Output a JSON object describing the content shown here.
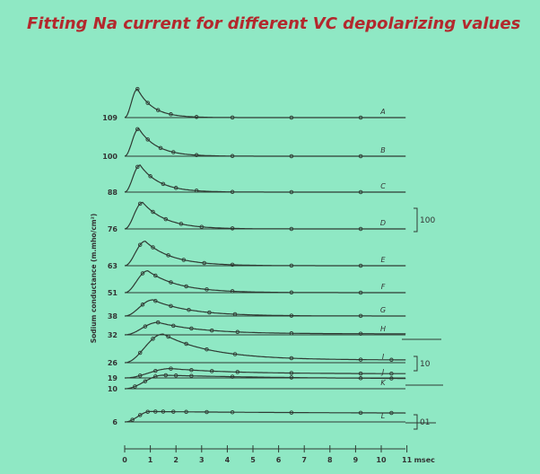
{
  "slide": {
    "title": "Fitting Na current for different VC depolarizing values"
  },
  "chart_data": {
    "type": "line",
    "ylabel": "Sodium conductance (m.mho/cm²)",
    "xlabel": "msec",
    "x_ticks": [
      "0",
      "1",
      "2",
      "3",
      "4",
      "5",
      "6",
      "7",
      "8",
      "9",
      "10",
      "11"
    ],
    "xlim": [
      0,
      11
    ],
    "scale_bars": [
      "100",
      "10",
      "01"
    ],
    "series": [
      {
        "name": "A",
        "depolarization": "109",
        "peak_time": 0.5,
        "peak": 0.55,
        "tau_decay": 0.6,
        "steady": 0.0,
        "points_x": [
          0.5,
          0.9,
          1.3,
          1.8,
          2.8,
          4.2,
          6.5,
          9.2
        ]
      },
      {
        "name": "B",
        "depolarization": "100",
        "peak_time": 0.55,
        "peak": 0.53,
        "tau_decay": 0.7,
        "steady": 0.0,
        "points_x": [
          0.5,
          0.9,
          1.4,
          1.9,
          2.8,
          4.2,
          6.5,
          9.2
        ]
      },
      {
        "name": "C",
        "depolarization": "88",
        "peak_time": 0.6,
        "peak": 0.52,
        "tau_decay": 0.75,
        "steady": 0.0,
        "points_x": [
          0.5,
          1.0,
          1.5,
          2.0,
          2.8,
          4.2,
          6.5,
          9.2
        ]
      },
      {
        "name": "D",
        "depolarization": "76",
        "peak_time": 0.7,
        "peak": 0.51,
        "tau_decay": 0.9,
        "steady": 0.0,
        "points_x": [
          0.6,
          1.1,
          1.6,
          2.2,
          3.0,
          4.2,
          6.5,
          9.2
        ]
      },
      {
        "name": "E",
        "depolarization": "63",
        "peak_time": 0.8,
        "peak": 0.47,
        "tau_decay": 1.05,
        "steady": 0.0,
        "points_x": [
          0.6,
          1.1,
          1.7,
          2.3,
          3.1,
          4.2,
          6.5,
          9.2
        ]
      },
      {
        "name": "F",
        "depolarization": "51",
        "peak_time": 0.9,
        "peak": 0.42,
        "tau_decay": 1.2,
        "steady": 0.0,
        "points_x": [
          0.7,
          1.2,
          1.8,
          2.4,
          3.2,
          4.2,
          6.5,
          9.2
        ]
      },
      {
        "name": "G",
        "depolarization": "38",
        "peak_time": 1.1,
        "peak": 0.31,
        "tau_decay": 1.45,
        "steady": 0.0,
        "points_x": [
          0.7,
          1.2,
          1.8,
          2.5,
          3.3,
          4.3,
          6.5,
          9.2
        ]
      },
      {
        "name": "H",
        "depolarization": "32",
        "peak_time": 1.3,
        "peak": 0.24,
        "tau_decay": 1.7,
        "steady": 0.02,
        "points_x": [
          0.8,
          1.3,
          1.9,
          2.6,
          3.4,
          4.4,
          6.5,
          9.2
        ]
      },
      {
        "name": "I",
        "depolarization": "26",
        "peak_time": 1.5,
        "peak": 0.55,
        "tau_decay": 1.9,
        "steady": 0.05,
        "points_x": [
          0.6,
          1.1,
          1.7,
          2.4,
          3.2,
          4.3,
          6.5,
          9.2,
          10.4
        ]
      },
      {
        "name": "J",
        "depolarization": "19",
        "peak_time": 1.8,
        "peak": 0.18,
        "tau_decay": 2.4,
        "steady": 0.08,
        "points_x": [
          0.6,
          1.2,
          1.8,
          2.6,
          3.4,
          4.4,
          6.5,
          9.2,
          10.4
        ]
      },
      {
        "name": "K",
        "depolarization": "10",
        "peak_time": 1.5,
        "peak": 0.26,
        "tau_decay": 6.0,
        "steady": 0.18,
        "points_x": [
          0.4,
          0.8,
          1.2,
          1.6,
          2.0,
          2.6,
          4.2,
          6.5,
          9.2,
          10.4
        ]
      },
      {
        "name": "L",
        "depolarization": "6",
        "peak_time": 1.0,
        "peak": 0.2,
        "tau_decay": 8.0,
        "steady": 0.16,
        "points_x": [
          0.3,
          0.6,
          0.9,
          1.2,
          1.5,
          1.9,
          2.4,
          3.2,
          4.2,
          6.5,
          9.2,
          10.4
        ]
      }
    ],
    "grid": false,
    "legend": "none"
  }
}
